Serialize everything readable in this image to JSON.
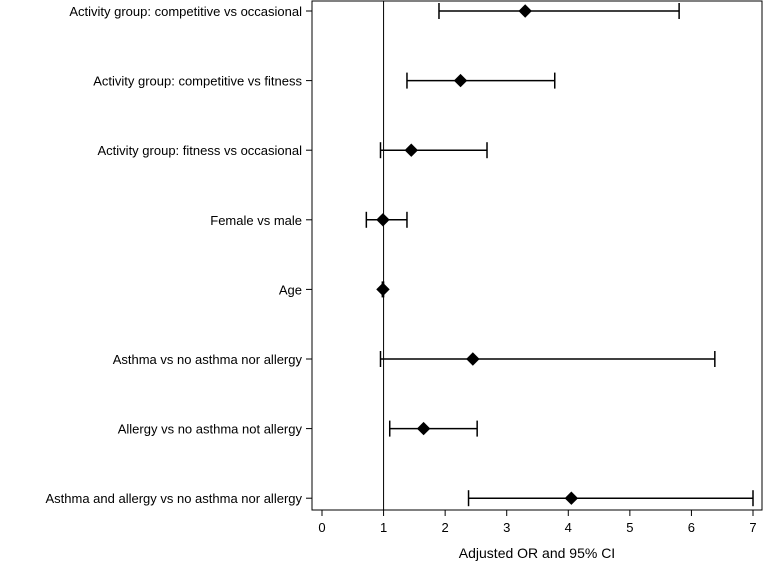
{
  "chart_data": {
    "type": "forest",
    "xlabel": "Adjusted OR and 95% CI",
    "xlim": [
      0,
      7
    ],
    "xticks": [
      "0",
      "1",
      "2",
      "3",
      "4",
      "5",
      "6",
      "7"
    ],
    "reference_line": 1,
    "marker": "diamond",
    "rows": [
      {
        "label": "Activity group: competitive vs occasional",
        "estimate": 3.3,
        "lower": 1.9,
        "upper": 5.8
      },
      {
        "label": "Activity group: competitive vs fitness",
        "estimate": 2.25,
        "lower": 1.38,
        "upper": 3.78
      },
      {
        "label": "Activity group: fitness vs occasional",
        "estimate": 1.45,
        "lower": 0.95,
        "upper": 2.68
      },
      {
        "label": "Female vs male",
        "estimate": 0.99,
        "lower": 0.72,
        "upper": 1.38
      },
      {
        "label": "Age",
        "estimate": 0.99,
        "lower": 0.98,
        "upper": 1.0
      },
      {
        "label": "Asthma vs no asthma nor allergy",
        "estimate": 2.45,
        "lower": 0.95,
        "upper": 6.38
      },
      {
        "label": "Allergy vs no asthma not allergy",
        "estimate": 1.65,
        "lower": 1.1,
        "upper": 2.52
      },
      {
        "label": "Asthma and allergy vs no asthma nor allergy",
        "estimate": 4.05,
        "lower": 2.38,
        "upper": 7.0
      }
    ]
  }
}
